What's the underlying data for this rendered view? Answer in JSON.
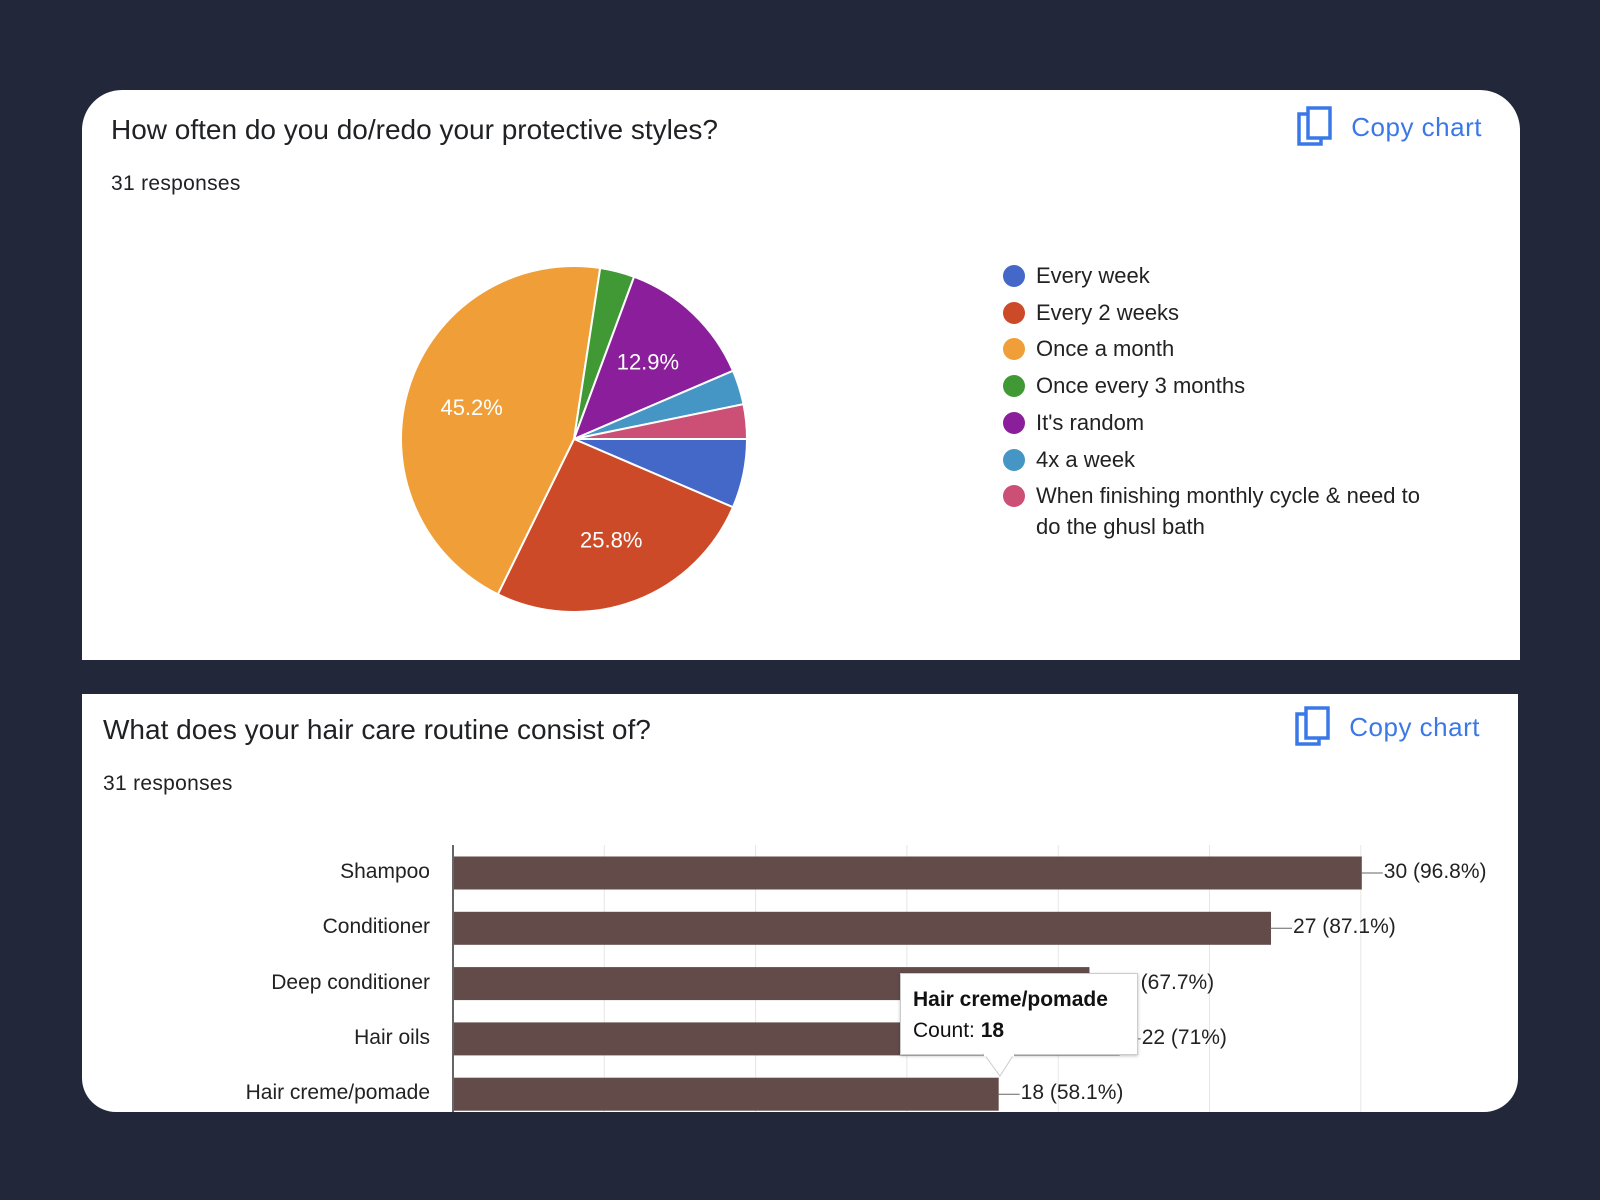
{
  "charts": [
    {
      "title": "How often do you do/redo your protective styles?",
      "responses": "31 responses",
      "copy_label": "Copy chart"
    },
    {
      "title": "What does your hair care routine consist of?",
      "responses": "31 responses",
      "copy_label": "Copy chart"
    }
  ],
  "chart_data": [
    {
      "type": "pie",
      "title": "How often do you do/redo your protective styles?",
      "legend_position": "right",
      "slices": [
        {
          "label": "Every week",
          "value": 2,
          "color": "#4368c8",
          "pct_label": ""
        },
        {
          "label": "Every 2 weeks",
          "value": 8,
          "color": "#cc4a27",
          "pct_label": "25.8%"
        },
        {
          "label": "Once a month",
          "value": 14,
          "color": "#f09f38",
          "pct_label": "45.2%"
        },
        {
          "label": "Once every 3 months",
          "value": 1,
          "color": "#419936",
          "pct_label": ""
        },
        {
          "label": "It's random",
          "value": 4,
          "color": "#8b1e9a",
          "pct_label": "12.9%"
        },
        {
          "label": "4x a week",
          "value": 1,
          "color": "#4596c4",
          "pct_label": ""
        },
        {
          "label": "When finishing monthly cycle & need to do the ghusl bath",
          "value": 1,
          "color": "#cc4f75",
          "pct_label": ""
        }
      ]
    },
    {
      "type": "bar",
      "orientation": "horizontal",
      "title": "What does your hair care routine consist of?",
      "xlim": [
        0,
        30
      ],
      "grid": true,
      "bar_color": "#634b4a",
      "categories": [
        "Shampoo",
        "Conditioner",
        "Deep conditioner",
        "Hair oils",
        "Hair creme/pomade"
      ],
      "values": [
        30,
        27,
        21,
        22,
        18
      ],
      "value_labels": [
        "30 (96.8%)",
        "27 (87.1%)",
        "21 (67.7%)",
        "22 (71%)",
        "18 (58.1%)"
      ],
      "tooltip": {
        "title": "Hair creme/pomade",
        "count_label": "Count:",
        "count": "18"
      }
    }
  ]
}
